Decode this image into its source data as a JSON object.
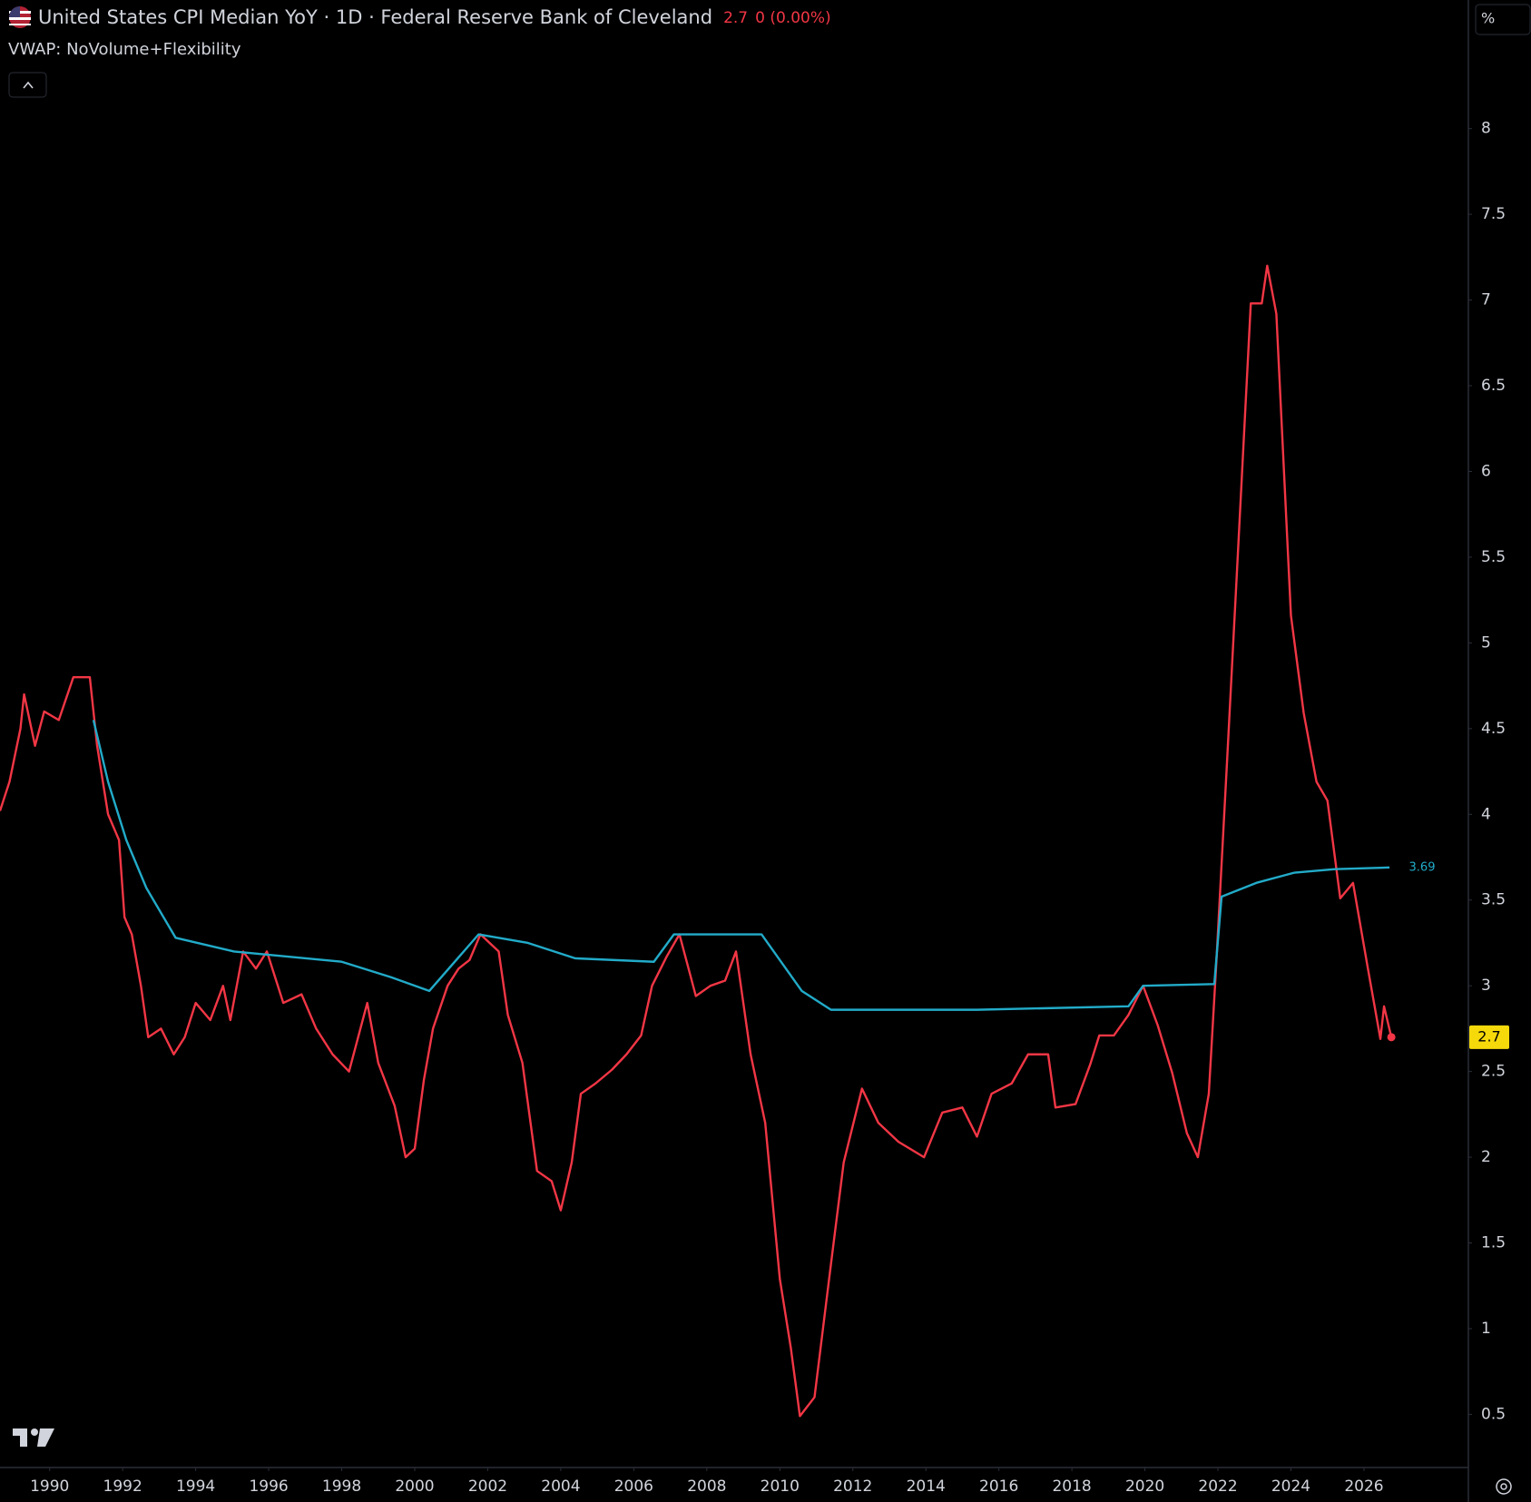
{
  "header": {
    "title": "United States CPI Median YoY · 1D · Federal Reserve Bank of Cleveland",
    "change": "0 (0.00%)",
    "y_unit": "%"
  },
  "chart_data": {
    "type": "line",
    "xlim": [
      1988.64,
      2028.86
    ],
    "xticks": [
      1990,
      1992,
      1994,
      1996,
      1998,
      2000,
      2002,
      2004,
      2006,
      2008,
      2010,
      2012,
      2014,
      2016,
      2018,
      2020,
      2022,
      2024,
      2026
    ],
    "ylim": [
      0.19,
      8.75
    ],
    "yticks": [
      0.5,
      1,
      1.5,
      2,
      2.5,
      3,
      3.5,
      4,
      4.5,
      5,
      5.5,
      6,
      6.5,
      7,
      7.5,
      8
    ],
    "grid": false,
    "series": [
      {
        "color": "#f23645",
        "x": [
          1988.64,
          1988.9,
          1989.2,
          1989.3,
          1989.6,
          1989.85,
          1990.25,
          1990.65,
          1991.1,
          1991.3,
          1991.6,
          1991.9,
          1992.05,
          1992.25,
          1992.5,
          1992.7,
          1993.05,
          1993.4,
          1993.7,
          1994.0,
          1994.4,
          1994.75,
          1994.95,
          1995.3,
          1995.65,
          1995.95,
          1996.4,
          1996.9,
          1997.3,
          1997.75,
          1998.2,
          1998.7,
          1999.0,
          1999.45,
          1999.75,
          2000.0,
          2000.25,
          2000.5,
          2000.9,
          2001.2,
          2001.5,
          2001.8,
          2002.3,
          2002.55,
          2002.95,
          2003.35,
          2003.75,
          2004.0,
          2004.3,
          2004.55,
          2004.95,
          2005.4,
          2005.8,
          2006.2,
          2006.5,
          2006.9,
          2007.25,
          2007.7,
          2008.1,
          2008.5,
          2008.8,
          2009.2,
          2009.6,
          2010.0,
          2010.3,
          2010.55,
          2010.95,
          2011.35,
          2011.75,
          2012.25,
          2012.7,
          2013.25,
          2013.95,
          2014.45,
          2015.0,
          2015.4,
          2015.8,
          2016.35,
          2016.8,
          2017.35,
          2017.55,
          2018.1,
          2018.5,
          2018.75,
          2019.15,
          2019.55,
          2019.95,
          2020.35,
          2020.75,
          2021.15,
          2021.45,
          2021.75,
          2021.95,
          2022.25,
          2022.5,
          2022.9,
          2023.2,
          2023.35,
          2023.6,
          2024.0,
          2024.35,
          2024.7,
          2025.0,
          2025.35,
          2025.7,
          2026.1,
          2026.45,
          2026.55,
          2026.75
        ],
        "values": [
          4.02,
          4.19,
          4.5,
          4.7,
          4.4,
          4.6,
          4.55,
          4.8,
          4.8,
          4.4,
          4.0,
          3.85,
          3.4,
          3.3,
          3.0,
          2.7,
          2.75,
          2.6,
          2.7,
          2.9,
          2.8,
          3.0,
          2.8,
          3.2,
          3.1,
          3.2,
          2.9,
          2.95,
          2.75,
          2.6,
          2.5,
          2.9,
          2.55,
          2.3,
          2.0,
          2.05,
          2.45,
          2.75,
          3.0,
          3.1,
          3.15,
          3.3,
          3.2,
          2.83,
          2.55,
          1.92,
          1.86,
          1.69,
          1.97,
          2.37,
          2.43,
          2.51,
          2.6,
          2.71,
          3.0,
          3.17,
          3.3,
          2.94,
          3.0,
          3.03,
          3.2,
          2.6,
          2.2,
          1.29,
          0.89,
          0.49,
          0.6,
          1.29,
          1.97,
          2.4,
          2.2,
          2.09,
          2.0,
          2.26,
          2.29,
          2.12,
          2.37,
          2.43,
          2.6,
          2.6,
          2.29,
          2.31,
          2.54,
          2.71,
          2.71,
          2.83,
          3.0,
          2.77,
          2.49,
          2.14,
          2.0,
          2.37,
          3.11,
          4.31,
          5.33,
          6.98,
          6.98,
          7.2,
          6.92,
          5.16,
          4.59,
          4.19,
          4.08,
          3.51,
          3.6,
          3.11,
          2.69,
          2.88,
          2.7
        ]
      },
      {
        "name": "VWAP: NoVolume+Flexibility",
        "color": "#22abc9",
        "x": [
          1991.2,
          1991.6,
          1992.1,
          1992.65,
          1993.45,
          1995.05,
          1998.0,
          1999.35,
          2000.4,
          2001.75,
          2003.1,
          2004.4,
          2006.55,
          2007.1,
          2009.5,
          2010.6,
          2011.4,
          2015.4,
          2019.55,
          2019.95,
          2021.9,
          2022.1,
          2023.05,
          2024.1,
          2025.2,
          2026.7
        ],
        "values": [
          4.55,
          4.19,
          3.85,
          3.57,
          3.28,
          3.2,
          3.14,
          3.05,
          2.97,
          3.3,
          3.25,
          3.16,
          3.14,
          3.3,
          3.3,
          2.97,
          2.86,
          2.86,
          2.88,
          3.0,
          3.01,
          3.52,
          3.6,
          3.66,
          3.68,
          3.69
        ]
      }
    ]
  }
}
